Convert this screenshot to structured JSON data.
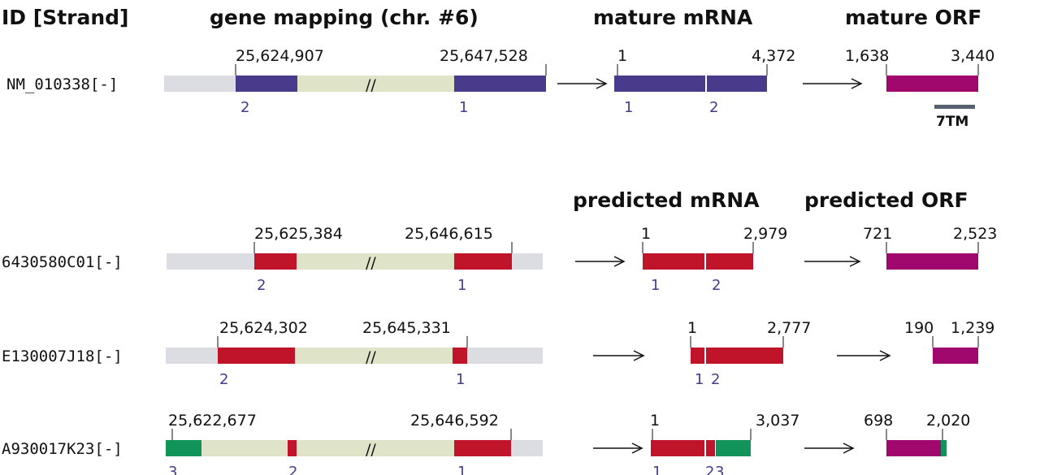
{
  "headers": {
    "id": "ID [Strand]",
    "gene_mapping": "gene mapping (chr. #6)",
    "mature_mrna": "mature mRNA",
    "mature_orf": "mature ORF",
    "predicted_mrna": "predicted mRNA",
    "predicted_orf": "predicted ORF"
  },
  "colors": {
    "intron": "#dfe3c8",
    "flank": "#dcdde3",
    "mature_exon": "#4a3a8c",
    "predicted_exon_red": "#c0142a",
    "predicted_exon_green": "#11935a",
    "orf": "#a0086e",
    "exon_number": "#4a3a8c"
  },
  "rows": [
    {
      "id": "NM_010338[-]",
      "gene_start": "25,624,907",
      "gene_end": "25,647,528",
      "gene_exon_numbers": [
        "2",
        "1"
      ],
      "mrna_start": "1",
      "mrna_end": "4,372",
      "mrna_exon_numbers": [
        "1",
        "2"
      ],
      "orf_start": "1,638",
      "orf_end": "3,440",
      "domain": "7TM",
      "break_mark": "//"
    },
    {
      "id": "6430580C01[-]",
      "gene_start": "25,625,384",
      "gene_end": "25,646,615",
      "gene_exon_numbers": [
        "2",
        "1"
      ],
      "mrna_start": "1",
      "mrna_end": "2,979",
      "mrna_exon_numbers": [
        "1",
        "2"
      ],
      "orf_start": "721",
      "orf_end": "2,523",
      "break_mark": "//"
    },
    {
      "id": "E130007J18[-]",
      "gene_start": "25,624,302",
      "gene_end": "25,645,331",
      "gene_exon_numbers": [
        "2",
        "1"
      ],
      "mrna_start": "1",
      "mrna_end": "2,777",
      "mrna_exon_numbers": [
        "1",
        "2"
      ],
      "orf_start": "190",
      "orf_end": "1,239",
      "break_mark": "//"
    },
    {
      "id": "A930017K23[-]",
      "gene_start": "25,622,677",
      "gene_end": "25,646,592",
      "gene_exon_numbers": [
        "3",
        "2",
        "1"
      ],
      "mrna_start": "1",
      "mrna_end": "3,037",
      "mrna_exon_numbers": [
        "1",
        "2",
        "3"
      ],
      "orf_start": "698",
      "orf_end": "2,020",
      "break_mark": "//"
    }
  ]
}
